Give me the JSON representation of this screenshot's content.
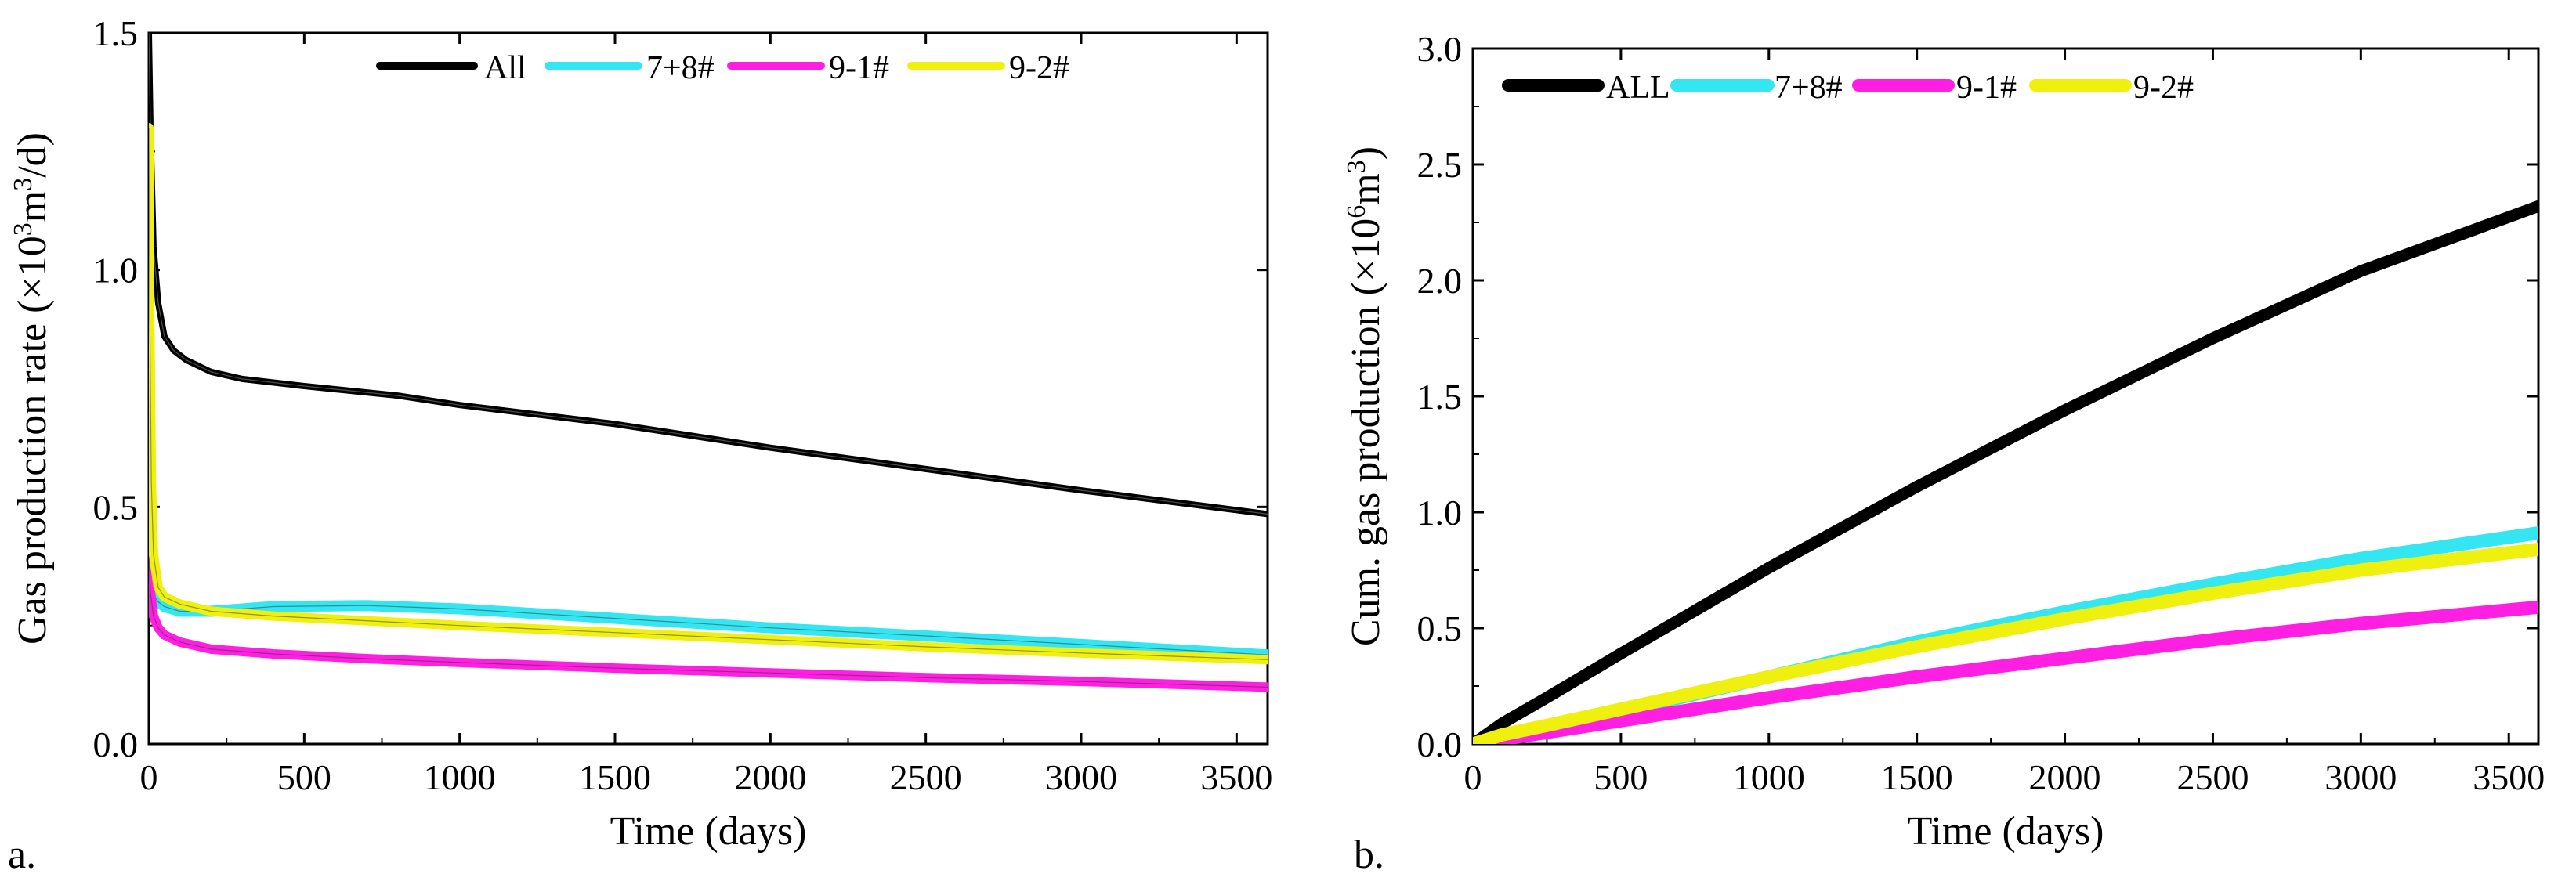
{
  "chart_data": [
    {
      "panel_label": "a.",
      "type": "line",
      "title": "",
      "xlabel": "Time (days)",
      "ylabel_main": "Gas production rate (×10",
      "ylabel_sup": "3",
      "ylabel_mid": "m",
      "ylabel_sup2": "3",
      "ylabel_end": "/d)",
      "xlim": [
        0,
        3600
      ],
      "ylim": [
        0,
        1.5
      ],
      "xticks": [
        0,
        500,
        1000,
        1500,
        2000,
        2500,
        3000,
        3500
      ],
      "xtick_labels": [
        "0",
        "500",
        "1000",
        "1500",
        "2000",
        "2500",
        "3000",
        "3500"
      ],
      "yticks": [
        0,
        0.5,
        1.0,
        1.5
      ],
      "ytick_labels": [
        "0.0",
        "0.5",
        "1.0",
        "1.5"
      ],
      "legend_position": "top",
      "series": [
        {
          "name": "All",
          "color": "#000000",
          "x": [
            0,
            5,
            15,
            30,
            50,
            80,
            120,
            200,
            300,
            500,
            800,
            1000,
            1500,
            2000,
            2500,
            3000,
            3600
          ],
          "y": [
            1.5,
            1.3,
            1.05,
            0.93,
            0.86,
            0.83,
            0.81,
            0.785,
            0.77,
            0.755,
            0.735,
            0.715,
            0.675,
            0.625,
            0.58,
            0.535,
            0.485
          ]
        },
        {
          "name": "7+8#",
          "color": "#33e6f2",
          "x": [
            0,
            5,
            15,
            30,
            50,
            100,
            200,
            400,
            700,
            1000,
            1500,
            2000,
            2500,
            3000,
            3600
          ],
          "y": [
            0.38,
            0.34,
            0.315,
            0.3,
            0.29,
            0.28,
            0.28,
            0.29,
            0.292,
            0.285,
            0.265,
            0.245,
            0.228,
            0.21,
            0.188
          ]
        },
        {
          "name": "9-1#",
          "color": "#ff1fe3",
          "x": [
            0,
            5,
            15,
            30,
            50,
            100,
            200,
            400,
            700,
            1000,
            1500,
            2000,
            2500,
            3000,
            3600
          ],
          "y": [
            0.4,
            0.32,
            0.27,
            0.245,
            0.23,
            0.215,
            0.2,
            0.19,
            0.18,
            0.172,
            0.16,
            0.15,
            0.14,
            0.132,
            0.12
          ]
        },
        {
          "name": "9-2#",
          "color": "#f0f00f",
          "x": [
            0,
            3,
            8,
            15,
            30,
            50,
            100,
            200,
            400,
            700,
            1000,
            1500,
            2000,
            2500,
            3000,
            3600
          ],
          "y": [
            1.3,
            0.9,
            0.55,
            0.4,
            0.33,
            0.31,
            0.295,
            0.28,
            0.27,
            0.26,
            0.25,
            0.235,
            0.22,
            0.205,
            0.192,
            0.178
          ]
        }
      ]
    },
    {
      "panel_label": "b.",
      "type": "line",
      "title": "",
      "xlabel": "Time (days)",
      "ylabel_main": "Cum. gas production (×10",
      "ylabel_sup": "6",
      "ylabel_mid": "m",
      "ylabel_sup2": "3",
      "ylabel_end": ")",
      "xlim": [
        0,
        3600
      ],
      "ylim": [
        0,
        3.0
      ],
      "xticks": [
        0,
        500,
        1000,
        1500,
        2000,
        2500,
        3000,
        3500
      ],
      "xtick_labels": [
        "0",
        "500",
        "1000",
        "1500",
        "2000",
        "2500",
        "3000",
        "3500"
      ],
      "yticks": [
        0,
        0.5,
        1.0,
        1.5,
        2.0,
        2.5,
        3.0
      ],
      "ytick_labels": [
        "0.0",
        "0.5",
        "1.0",
        "1.5",
        "2.0",
        "2.5",
        "3.0"
      ],
      "legend_position": "top-left",
      "series": [
        {
          "name": "ALL",
          "color": "#000000",
          "x": [
            0,
            100,
            250,
            500,
            1000,
            1500,
            2000,
            2500,
            3000,
            3600
          ],
          "y": [
            0,
            0.09,
            0.2,
            0.39,
            0.76,
            1.11,
            1.44,
            1.75,
            2.04,
            2.32
          ]
        },
        {
          "name": "7+8#",
          "color": "#33e6f2",
          "x": [
            0,
            100,
            250,
            500,
            1000,
            1500,
            2000,
            2500,
            3000,
            3600
          ],
          "y": [
            0,
            0.03,
            0.07,
            0.14,
            0.29,
            0.44,
            0.57,
            0.69,
            0.8,
            0.91
          ]
        },
        {
          "name": "9-1#",
          "color": "#ff1fe3",
          "x": [
            0,
            100,
            250,
            500,
            1000,
            1500,
            2000,
            2500,
            3000,
            3600
          ],
          "y": [
            0,
            0.02,
            0.05,
            0.1,
            0.2,
            0.29,
            0.37,
            0.45,
            0.52,
            0.59
          ]
        },
        {
          "name": "9-2#",
          "color": "#f0f00f",
          "x": [
            0,
            100,
            250,
            500,
            1000,
            1500,
            2000,
            2500,
            3000,
            3600
          ],
          "y": [
            0,
            0.04,
            0.08,
            0.15,
            0.29,
            0.42,
            0.54,
            0.65,
            0.75,
            0.84
          ]
        }
      ]
    }
  ]
}
